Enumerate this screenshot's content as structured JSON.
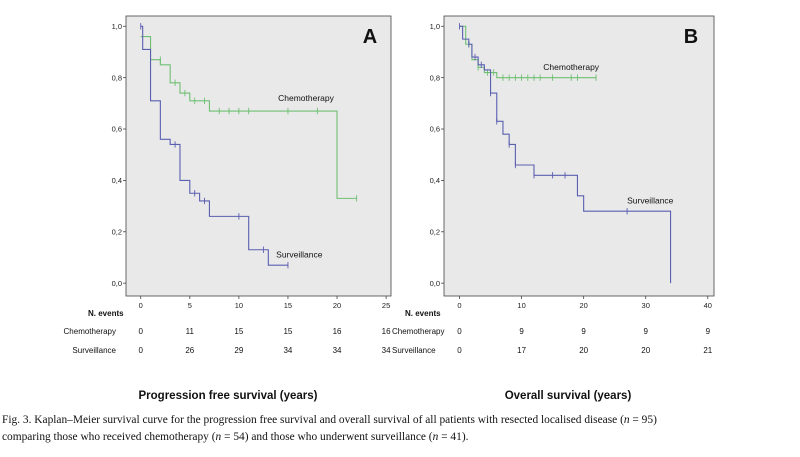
{
  "chart_data": [
    {
      "type": "line",
      "panel": "A",
      "xlabel": "Progression free survival (years)",
      "x_ticks": [
        0,
        5,
        10,
        15,
        20,
        25
      ],
      "y_ticks": [
        "0,0",
        "0,2",
        "0,4",
        "0,6",
        "0,8",
        "1,0"
      ],
      "xlim": [
        -1.5,
        25.5
      ],
      "ylim": [
        -0.05,
        1.04
      ],
      "grid": false,
      "series": [
        {
          "name": "Chemotherapy",
          "color": "#6fbf73",
          "steps": [
            [
              0,
              0.96
            ],
            [
              1,
              0.87
            ],
            [
              2,
              0.85
            ],
            [
              3,
              0.78
            ],
            [
              4,
              0.74
            ],
            [
              5,
              0.71
            ],
            [
              7,
              0.67
            ],
            [
              20,
              0.33
            ],
            [
              22,
              0.33
            ]
          ],
          "censored": [
            [
              2,
              0.87
            ],
            [
              3.5,
              0.78
            ],
            [
              4.5,
              0.74
            ],
            [
              5.5,
              0.71
            ],
            [
              6.5,
              0.71
            ],
            [
              8,
              0.67
            ],
            [
              9,
              0.67
            ],
            [
              10,
              0.67
            ],
            [
              11,
              0.67
            ],
            [
              15,
              0.67
            ],
            [
              18,
              0.67
            ],
            [
              22,
              0.33
            ]
          ]
        },
        {
          "name": "Surveillance",
          "color": "#5a5fb0",
          "steps": [
            [
              0,
              1.0
            ],
            [
              0.2,
              0.91
            ],
            [
              1,
              0.71
            ],
            [
              2,
              0.56
            ],
            [
              3,
              0.54
            ],
            [
              4,
              0.4
            ],
            [
              5,
              0.35
            ],
            [
              6,
              0.32
            ],
            [
              7,
              0.26
            ],
            [
              11,
              0.13
            ],
            [
              13,
              0.07
            ],
            [
              15,
              0.07
            ]
          ],
          "censored": [
            [
              0,
              1.0
            ],
            [
              3.5,
              0.54
            ],
            [
              5.5,
              0.35
            ],
            [
              6.5,
              0.32
            ],
            [
              10,
              0.26
            ],
            [
              12.5,
              0.13
            ],
            [
              15,
              0.07
            ]
          ]
        }
      ],
      "annotations": [
        {
          "text": "Chemotherapy",
          "x": 14,
          "y": 0.71
        },
        {
          "text": "Surveillance",
          "x": 13.8,
          "y": 0.1
        }
      ],
      "risk_table": {
        "header": "N. events",
        "rows": [
          {
            "label": "Chemotherapy",
            "values": [
              "0",
              "11",
              "15",
              "15",
              "16",
              "16"
            ]
          },
          {
            "label": "Surveillance",
            "values": [
              "0",
              "26",
              "29",
              "34",
              "34",
              "34"
            ]
          }
        ]
      }
    },
    {
      "type": "line",
      "panel": "B",
      "xlabel": "Overall survival (years)",
      "x_ticks": [
        0,
        10,
        20,
        30,
        40
      ],
      "y_ticks": [
        "0,0",
        "0,2",
        "0,4",
        "0,6",
        "0,8",
        "1,0"
      ],
      "xlim": [
        -2.5,
        41
      ],
      "ylim": [
        -0.05,
        1.04
      ],
      "grid": false,
      "series": [
        {
          "name": "Chemotherapy",
          "color": "#6fbf73",
          "steps": [
            [
              0,
              1.0
            ],
            [
              1,
              0.93
            ],
            [
              2,
              0.87
            ],
            [
              3,
              0.84
            ],
            [
              4,
              0.82
            ],
            [
              6,
              0.8
            ],
            [
              22,
              0.8
            ]
          ],
          "censored": [
            [
              1.5,
              0.93
            ],
            [
              3,
              0.84
            ],
            [
              4.5,
              0.82
            ],
            [
              5.5,
              0.82
            ],
            [
              7,
              0.8
            ],
            [
              8,
              0.8
            ],
            [
              9,
              0.8
            ],
            [
              10,
              0.8
            ],
            [
              11,
              0.8
            ],
            [
              12,
              0.8
            ],
            [
              13,
              0.8
            ],
            [
              15,
              0.8
            ],
            [
              18,
              0.8
            ],
            [
              19,
              0.8
            ],
            [
              22,
              0.8
            ]
          ]
        },
        {
          "name": "Surveillance",
          "color": "#5a5fb0",
          "steps": [
            [
              0,
              1.0
            ],
            [
              0.5,
              0.95
            ],
            [
              1.5,
              0.93
            ],
            [
              2,
              0.88
            ],
            [
              3,
              0.85
            ],
            [
              4,
              0.83
            ],
            [
              5,
              0.74
            ],
            [
              6,
              0.63
            ],
            [
              7,
              0.58
            ],
            [
              8,
              0.54
            ],
            [
              9,
              0.46
            ],
            [
              12,
              0.42
            ],
            [
              19,
              0.34
            ],
            [
              20,
              0.28
            ],
            [
              34,
              0.0
            ]
          ],
          "censored": [
            [
              0,
              1.0
            ],
            [
              1.5,
              0.93
            ],
            [
              2.5,
              0.88
            ],
            [
              3.5,
              0.85
            ],
            [
              5,
              0.74
            ],
            [
              6,
              0.63
            ],
            [
              8,
              0.54
            ],
            [
              9,
              0.46
            ],
            [
              12,
              0.42
            ],
            [
              15,
              0.42
            ],
            [
              17,
              0.42
            ],
            [
              27,
              0.28
            ]
          ]
        }
      ],
      "annotations": [
        {
          "text": "Chemotherapy",
          "x": 13.5,
          "y": 0.83
        },
        {
          "text": "Surveillance",
          "x": 27,
          "y": 0.31
        }
      ],
      "risk_table": {
        "header": "N. events",
        "rows": [
          {
            "label": "Chemotherapy",
            "values": [
              "0",
              "9",
              "9",
              "9",
              "9"
            ]
          },
          {
            "label": "Surveillance",
            "values": [
              "0",
              "17",
              "20",
              "20",
              "21"
            ]
          }
        ]
      }
    }
  ],
  "caption": {
    "p1": "Fig. 3.  Kaplan–Meier survival curve for the progression free survival and overall survival of all patients with resected localised disease (",
    "v1": "n",
    "p2": " = 95)",
    "p3": "comparing those who received chemotherapy (",
    "v2": "n",
    "p4": " = 54) and those who underwent surveillance (",
    "v3": "n",
    "p5": " = 41)."
  }
}
